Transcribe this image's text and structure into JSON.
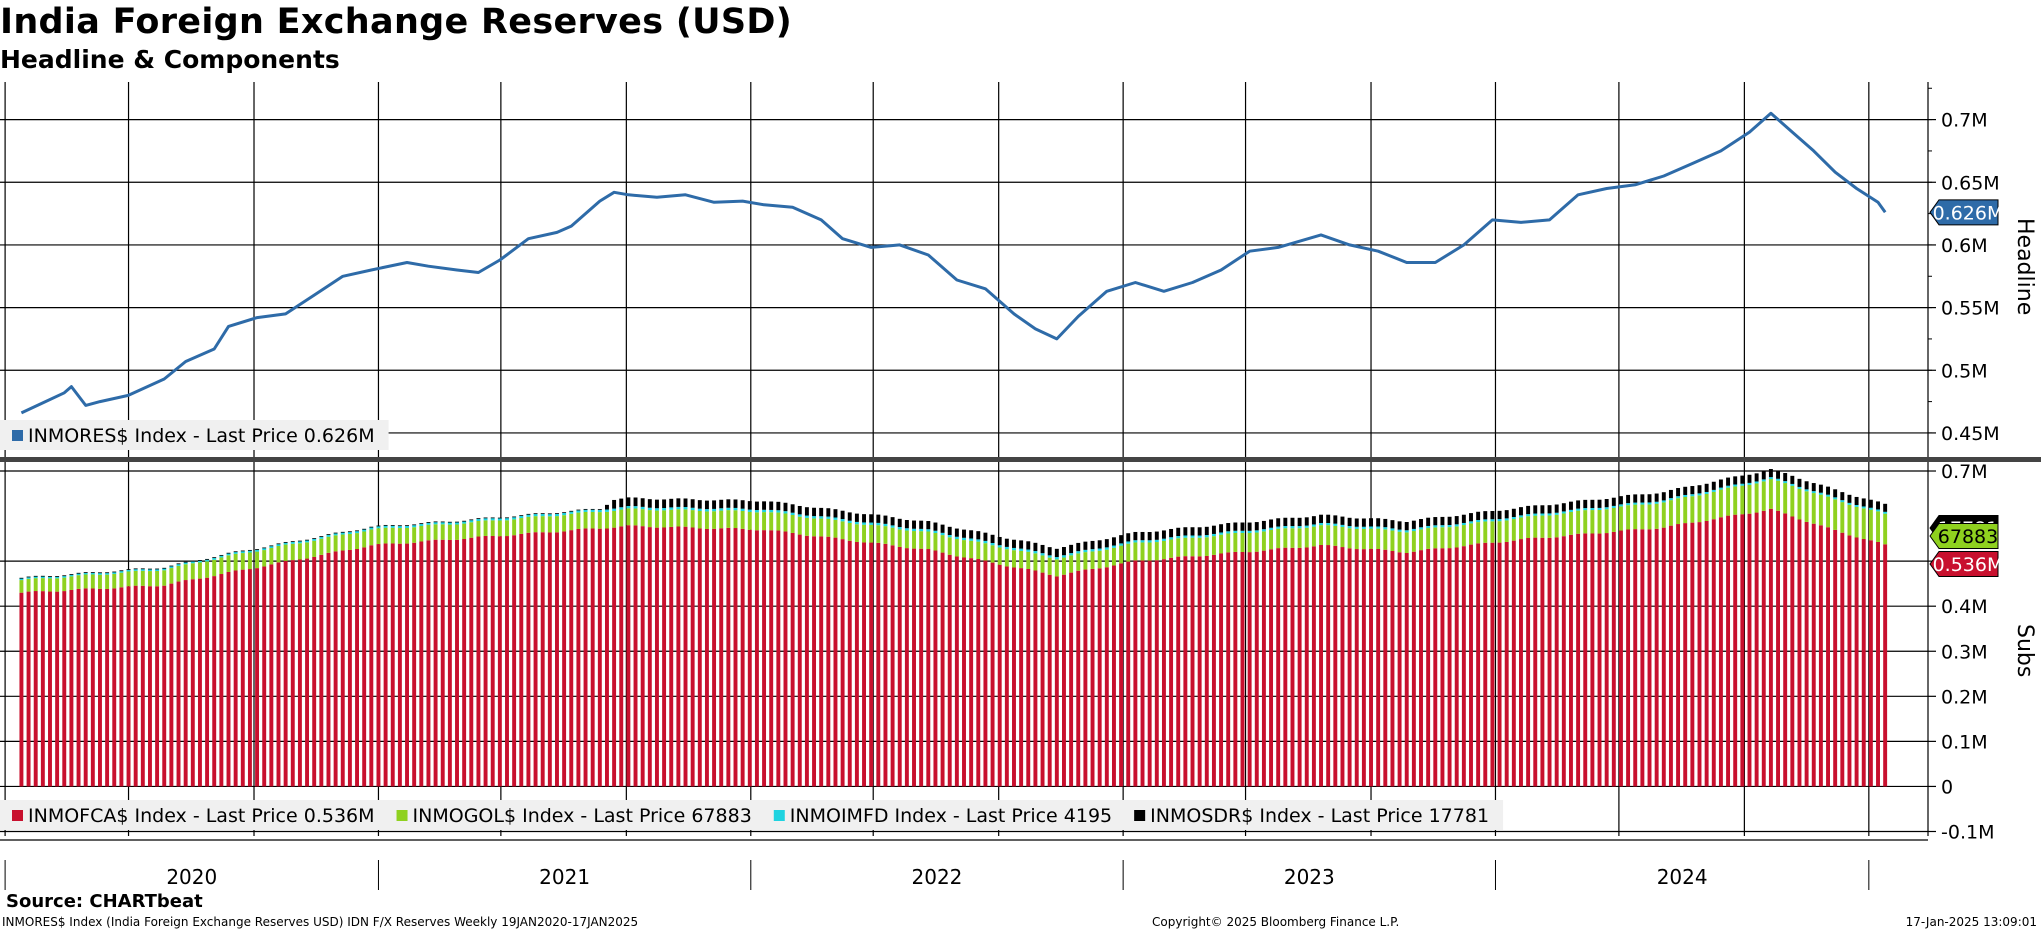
{
  "header": {
    "title": "India Foreign Exchange Reserves (USD)",
    "subtitle": "Headline & Components"
  },
  "footer": {
    "source": "Source: CHARTbeat",
    "ticker_info": "INMORES$ Index (India Foreign Exchange Reserves USD) IDN F/X Reserves  Weekly 19JAN2020-17JAN2025",
    "copyright": "Copyright© 2025 Bloomberg Finance L.P.",
    "timestamp": "17-Jan-2025 13:09:01"
  },
  "colors": {
    "headline_line": "#2e6ba8",
    "fca": "#c8102e",
    "gold": "#8fd11f",
    "imf": "#1fd3e0",
    "sdr": "#000000",
    "grid": "#000000",
    "panel_divider": "#444444",
    "legend_bg": "#f0f0f0"
  },
  "chart_data": [
    {
      "type": "line",
      "panel": "Headline",
      "axis_title": "Headline",
      "ylim": [
        0.43,
        0.73
      ],
      "y_ticks": [
        0.45,
        0.5,
        0.55,
        0.6,
        0.65,
        0.7
      ],
      "y_tick_labels": [
        "0.45M",
        "0.5M",
        "0.55M",
        "0.6M",
        "0.65M",
        "0.7M"
      ],
      "y_unit": "M USD",
      "grid": true,
      "legend_position": "bottom-left",
      "series": [
        {
          "name": "INMORES$ Index - Last Price 0.626M",
          "last_value": 0.626,
          "last_label": "0.626M",
          "points": [
            [
              "2020-01-17",
              0.466
            ],
            [
              "2020-02-07",
              0.474
            ],
            [
              "2020-02-28",
              0.482
            ],
            [
              "2020-03-06",
              0.487
            ],
            [
              "2020-03-20",
              0.472
            ],
            [
              "2020-04-03",
              0.475
            ],
            [
              "2020-05-01",
              0.48
            ],
            [
              "2020-06-05",
              0.493
            ],
            [
              "2020-06-26",
              0.507
            ],
            [
              "2020-07-24",
              0.517
            ],
            [
              "2020-08-07",
              0.535
            ],
            [
              "2020-09-04",
              0.542
            ],
            [
              "2020-10-02",
              0.545
            ],
            [
              "2020-10-30",
              0.56
            ],
            [
              "2020-11-27",
              0.575
            ],
            [
              "2020-12-25",
              0.58
            ],
            [
              "2021-01-29",
              0.586
            ],
            [
              "2021-02-19",
              0.583
            ],
            [
              "2021-03-19",
              0.58
            ],
            [
              "2021-04-09",
              0.578
            ],
            [
              "2021-04-30",
              0.588
            ],
            [
              "2021-05-28",
              0.605
            ],
            [
              "2021-06-25",
              0.61
            ],
            [
              "2021-07-09",
              0.615
            ],
            [
              "2021-08-06",
              0.635
            ],
            [
              "2021-08-20",
              0.642
            ],
            [
              "2021-09-03",
              0.64
            ],
            [
              "2021-10-01",
              0.638
            ],
            [
              "2021-10-29",
              0.64
            ],
            [
              "2021-11-26",
              0.634
            ],
            [
              "2021-12-24",
              0.635
            ],
            [
              "2022-01-14",
              0.632
            ],
            [
              "2022-02-11",
              0.63
            ],
            [
              "2022-03-11",
              0.62
            ],
            [
              "2022-04-01",
              0.605
            ],
            [
              "2022-04-29",
              0.598
            ],
            [
              "2022-05-27",
              0.6
            ],
            [
              "2022-06-24",
              0.592
            ],
            [
              "2022-07-22",
              0.572
            ],
            [
              "2022-08-19",
              0.565
            ],
            [
              "2022-09-16",
              0.545
            ],
            [
              "2022-10-07",
              0.533
            ],
            [
              "2022-10-28",
              0.525
            ],
            [
              "2022-11-18",
              0.543
            ],
            [
              "2022-12-16",
              0.563
            ],
            [
              "2023-01-13",
              0.57
            ],
            [
              "2023-02-10",
              0.563
            ],
            [
              "2023-03-10",
              0.57
            ],
            [
              "2023-04-07",
              0.58
            ],
            [
              "2023-05-05",
              0.595
            ],
            [
              "2023-06-02",
              0.598
            ],
            [
              "2023-07-14",
              0.608
            ],
            [
              "2023-08-11",
              0.6
            ],
            [
              "2023-09-08",
              0.595
            ],
            [
              "2023-10-06",
              0.586
            ],
            [
              "2023-11-03",
              0.586
            ],
            [
              "2023-12-01",
              0.6
            ],
            [
              "2023-12-29",
              0.62
            ],
            [
              "2024-01-26",
              0.618
            ],
            [
              "2024-02-23",
              0.62
            ],
            [
              "2024-03-22",
              0.64
            ],
            [
              "2024-04-19",
              0.645
            ],
            [
              "2024-05-17",
              0.648
            ],
            [
              "2024-06-14",
              0.655
            ],
            [
              "2024-07-12",
              0.665
            ],
            [
              "2024-08-09",
              0.675
            ],
            [
              "2024-09-06",
              0.69
            ],
            [
              "2024-09-27",
              0.705
            ],
            [
              "2024-10-18",
              0.69
            ],
            [
              "2024-11-08",
              0.675
            ],
            [
              "2024-11-29",
              0.658
            ],
            [
              "2024-12-20",
              0.645
            ],
            [
              "2025-01-10",
              0.634
            ],
            [
              "2025-01-17",
              0.626
            ]
          ]
        }
      ]
    },
    {
      "type": "bar",
      "stacked": true,
      "panel": "Subs",
      "axis_title": "Subs",
      "ylim": [
        -0.11,
        0.72
      ],
      "y_ticks": [
        -0.1,
        0,
        0.1,
        0.2,
        0.3,
        0.4,
        0.5,
        0.7
      ],
      "y_tick_labels": [
        "-0.1M",
        "0",
        "0.1M",
        "0.2M",
        "0.3M",
        "0.4M",
        "0.5M",
        "0.7M"
      ],
      "y_unit": "M USD",
      "grid": true,
      "legend_position": "bottom-left",
      "x_ticks": [
        "2020",
        "2021",
        "2022",
        "2023",
        "2024"
      ],
      "series": [
        {
          "name": "INMOFCA$ Index - Last Price 0.536M",
          "last_label": "0.536M",
          "key": "fca"
        },
        {
          "name": "INMOGOL$ Index - Last Price 67883",
          "last_label": "67883",
          "key": "gold"
        },
        {
          "name": "INMOIMFD Index - Last Price 4195",
          "last_label": "4195",
          "key": "imf"
        },
        {
          "name": "INMOSDR$ Index - Last Price 17781",
          "last_label": "17781",
          "key": "sdr"
        }
      ],
      "component_points": {
        "fca": [
          [
            "2020-01-17",
            0.43
          ],
          [
            "2020-06-05",
            0.447
          ],
          [
            "2020-12-25",
            0.535
          ],
          [
            "2021-06-25",
            0.566
          ],
          [
            "2021-09-03",
            0.578
          ],
          [
            "2022-01-14",
            0.57
          ],
          [
            "2022-06-24",
            0.525
          ],
          [
            "2022-10-28",
            0.468
          ],
          [
            "2023-01-13",
            0.5
          ],
          [
            "2023-07-14",
            0.535
          ],
          [
            "2023-10-06",
            0.52
          ],
          [
            "2024-01-26",
            0.548
          ],
          [
            "2024-06-14",
            0.575
          ],
          [
            "2024-09-27",
            0.615
          ],
          [
            "2024-11-29",
            0.568
          ],
          [
            "2025-01-17",
            0.536
          ]
        ],
        "gold": [
          [
            "2020-01-17",
            0.028
          ],
          [
            "2020-08-07",
            0.037
          ],
          [
            "2021-03-19",
            0.034
          ],
          [
            "2022-01-14",
            0.04
          ],
          [
            "2022-10-28",
            0.038
          ],
          [
            "2023-07-14",
            0.044
          ],
          [
            "2024-01-26",
            0.048
          ],
          [
            "2024-06-14",
            0.056
          ],
          [
            "2024-10-18",
            0.068
          ],
          [
            "2025-01-17",
            0.0679
          ]
        ],
        "imf": [
          [
            "2020-01-17",
            0.0036
          ],
          [
            "2021-08-20",
            0.0052
          ],
          [
            "2023-01-13",
            0.005
          ],
          [
            "2025-01-17",
            0.0042
          ]
        ],
        "sdr": [
          [
            "2020-01-17",
            0.0014
          ],
          [
            "2021-08-06",
            0.0015
          ],
          [
            "2021-08-20",
            0.0192
          ],
          [
            "2022-06-24",
            0.0182
          ],
          [
            "2023-07-14",
            0.0184
          ],
          [
            "2024-06-14",
            0.0182
          ],
          [
            "2025-01-17",
            0.0178
          ]
        ]
      }
    }
  ]
}
